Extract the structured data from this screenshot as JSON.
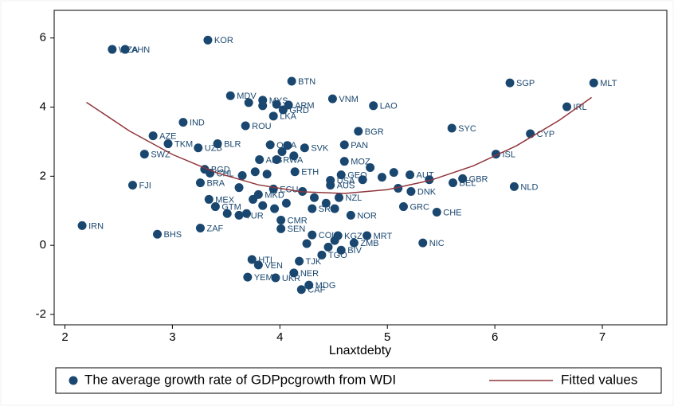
{
  "chart_data": {
    "type": "scatter",
    "x_label": "Lnaxtdebty",
    "xlim": [
      1.9,
      7.6
    ],
    "xticks": [
      2,
      3,
      4,
      5,
      6,
      7
    ],
    "ylim": [
      -2.3,
      6.8
    ],
    "yticks": [
      -2,
      0,
      2,
      4,
      6
    ],
    "grid": false,
    "legend": "bottom",
    "series": [
      {
        "name": "The average growth rate of GDPpcgrowth from WDI",
        "color": "#1a476f",
        "x": [
          3.33,
          2.44,
          2.56,
          2.16,
          2.63,
          2.86,
          3.26,
          2.74,
          2.82,
          2.96,
          3.1,
          3.24,
          3.54,
          3.68,
          3.84,
          3.94,
          4.03,
          4.08,
          4.11,
          4.49,
          4.87,
          4.73,
          4.6,
          4.23,
          4.6,
          4.14,
          6.14,
          6.92,
          6.67,
          5.6,
          6.33,
          6.01,
          5.7,
          5.61,
          6.18,
          5.46,
          5.15,
          5.33,
          4.81,
          4.54,
          4.3,
          4.69,
          4.57,
          4.39,
          4.18,
          3.74,
          3.8,
          4.13,
          3.7,
          3.96,
          4.27,
          4.2,
          4.01,
          4.01,
          3.62,
          4.66,
          3.4,
          3.34,
          3.26,
          3.3,
          3.35,
          3.42,
          3.8,
          3.94,
          4.47,
          4.47,
          4.55,
          5.22,
          5.21,
          4.57,
          4.3,
          3.81,
          3.97,
          3.91,
          3.65,
          3.77,
          3.88,
          3.62,
          3.75,
          3.84,
          3.95,
          4.06,
          4.21,
          4.32,
          4.43,
          4.51,
          3.51,
          3.69,
          3.71,
          3.84,
          3.97,
          4.02,
          4.13,
          4.07,
          4.84,
          4.95,
          5.06,
          4.77,
          5.1,
          5.39,
          4.45,
          4.51,
          4.25
        ],
        "values": [
          5.94,
          5.67,
          5.67,
          0.57,
          1.74,
          0.32,
          0.5,
          2.64,
          3.17,
          2.94,
          3.56,
          2.82,
          4.33,
          3.46,
          4.2,
          3.74,
          3.92,
          4.06,
          4.75,
          4.24,
          4.04,
          3.3,
          2.91,
          2.82,
          2.43,
          2.13,
          4.7,
          4.7,
          4.01,
          3.39,
          3.23,
          2.64,
          1.93,
          1.81,
          1.7,
          0.96,
          1.12,
          0.07,
          0.28,
          0.28,
          0.3,
          0.07,
          -0.14,
          -0.28,
          -0.46,
          -0.41,
          -0.57,
          -0.8,
          -0.92,
          -0.94,
          -1.15,
          -1.28,
          0.48,
          0.73,
          0.87,
          0.87,
          1.12,
          1.33,
          1.81,
          2.2,
          2.09,
          2.94,
          1.47,
          1.63,
          1.88,
          1.74,
          1.38,
          1.56,
          2.04,
          2.04,
          1.06,
          2.48,
          2.48,
          2.91,
          2.02,
          2.13,
          2.06,
          1.67,
          1.33,
          1.15,
          1.06,
          1.22,
          1.56,
          1.38,
          1.22,
          1.06,
          0.92,
          0.92,
          4.13,
          4.04,
          4.08,
          2.71,
          2.59,
          2.89,
          2.25,
          1.97,
          2.11,
          1.9,
          1.65,
          1.9,
          -0.05,
          0.14,
          0.05
        ],
        "labels": [
          "KOR",
          "WZA",
          "AHN",
          "IRN",
          "FJI",
          "BHS",
          "ZAF",
          "SWZ",
          "AZE",
          "TKM",
          "IND",
          "UZB",
          "MDV",
          "ROU",
          "MYS",
          "LKA",
          "GRD",
          "ARM",
          "BTN",
          "VNM",
          "LAO",
          "BGR",
          "PAN",
          "SVK",
          "MOZ",
          "ETH",
          "SGP",
          "MLT",
          "IRL",
          "SYC",
          "CYP",
          "ISL",
          "GBR",
          "BEL",
          "NLD",
          "CHE",
          "GRC",
          "NIC",
          "MRT",
          "KGZ",
          "COL",
          "ZMB",
          "BIV",
          "TGO",
          "TJK",
          "HTI",
          "VEN",
          "NER",
          "YEM",
          "UKR",
          "MDG",
          "CAF",
          "SEN",
          "CMR",
          "TUR",
          "NOR",
          "GTM",
          "MEX",
          "BRA",
          "BGD",
          "CHL",
          "BLR",
          "MKD",
          "ECU",
          "USA",
          "AUS",
          "NZL",
          "DNK",
          "AUT",
          "GEO",
          "SRB",
          "ALB",
          "RWA",
          "OMA",
          null,
          null,
          null,
          null,
          null,
          null,
          null,
          null,
          null,
          null,
          null,
          null,
          null,
          null,
          null,
          null,
          null,
          null,
          null,
          null,
          null,
          null,
          null,
          null,
          null,
          null,
          null,
          null,
          null
        ]
      },
      {
        "name": "Fitted values",
        "color": "#90353b",
        "type": "line",
        "x": [
          2.2,
          2.6,
          3.0,
          3.4,
          3.8,
          4.2,
          4.6,
          5.0,
          5.4,
          5.8,
          6.2,
          6.6,
          6.9
        ],
        "values": [
          4.14,
          3.31,
          2.63,
          2.11,
          1.75,
          1.55,
          1.5,
          1.61,
          1.88,
          2.3,
          2.88,
          3.62,
          4.28
        ]
      }
    ]
  }
}
